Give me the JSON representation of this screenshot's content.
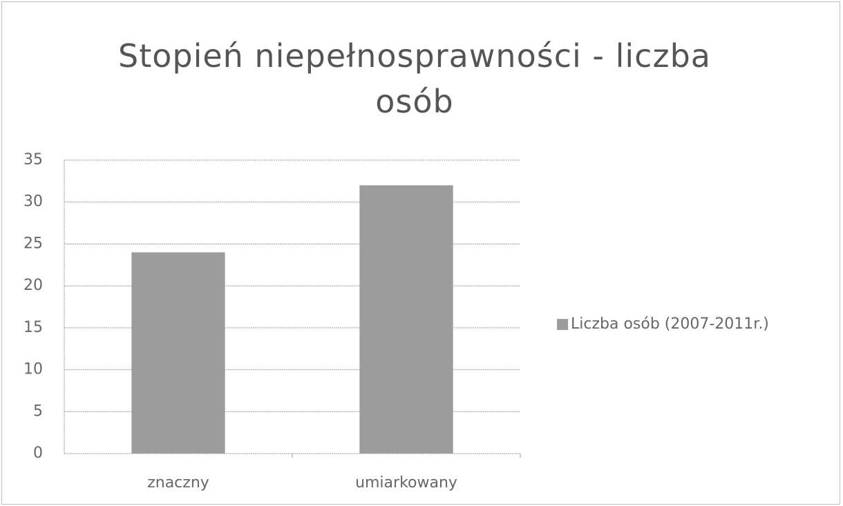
{
  "chart_data": {
    "type": "bar",
    "title": "Stopień niepełnosprawności - liczba osób",
    "categories": [
      "znaczny",
      "umiarkowany"
    ],
    "series": [
      {
        "name": "Liczba osób (2007-2011r.)",
        "color": "#9c9c9c",
        "values": [
          24,
          32
        ]
      }
    ],
    "ylim": [
      0,
      35
    ],
    "yticks": [
      0,
      5,
      10,
      15,
      20,
      25,
      30,
      35
    ],
    "grid": true,
    "legend": "right"
  }
}
